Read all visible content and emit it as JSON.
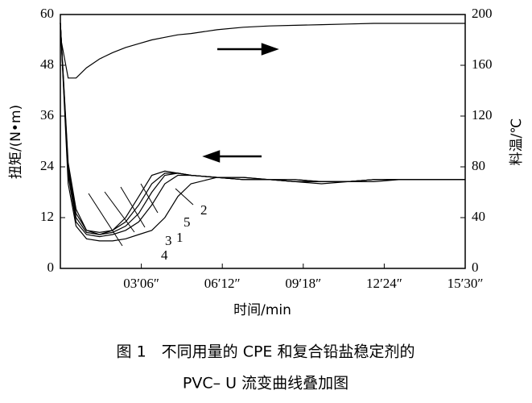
{
  "chart_data": {
    "type": "line",
    "x_label": "时间/min",
    "y_label": "扭矩/(N•m)",
    "y2_label": "料温/℃",
    "caption": [
      "图 1　不同用量的 CPE 和复合铅盐稳定剂的",
      "PVC– U 流变曲线叠加图"
    ],
    "x": [
      0,
      0.3,
      0.6,
      1,
      1.5,
      2,
      2.5,
      3,
      3.5,
      4,
      4.5,
      5,
      6,
      7,
      8,
      9,
      10,
      11,
      12,
      13,
      14,
      15,
      15.5
    ],
    "series": [
      {
        "name": "1",
        "color": "#000000",
        "values": [
          58,
          23,
          12,
          8.5,
          8,
          8.5,
          10,
          13,
          18,
          22,
          22.5,
          22,
          21.5,
          21,
          21,
          20.5,
          20.5,
          20.5,
          21,
          21,
          21,
          21,
          21
        ]
      },
      {
        "name": "2",
        "color": "#000000",
        "values": [
          58,
          20,
          10,
          7,
          6.5,
          6.5,
          7,
          8,
          9,
          12,
          17,
          20,
          21.5,
          21.5,
          21,
          21,
          20.5,
          20.5,
          21,
          21,
          21,
          21,
          21
        ]
      },
      {
        "name": "3",
        "color": "#000000",
        "values": [
          58,
          24,
          13,
          9,
          8.5,
          9,
          11,
          15,
          20,
          22.5,
          22.5,
          22,
          21.5,
          21,
          21,
          20.5,
          20.5,
          20.5,
          21,
          21,
          21,
          21,
          21
        ]
      },
      {
        "name": "4",
        "color": "#000000",
        "values": [
          58,
          25,
          14,
          9,
          8,
          9,
          12,
          17,
          22,
          23,
          22.5,
          22,
          21.5,
          21.5,
          21,
          21,
          20.5,
          20.5,
          21,
          21,
          21,
          21,
          21
        ]
      },
      {
        "name": "5",
        "color": "#000000",
        "values": [
          58,
          22,
          11,
          8,
          7.5,
          8,
          9,
          11,
          15,
          20,
          22,
          22,
          21.5,
          21,
          21,
          20.5,
          20,
          20.5,
          20.5,
          21,
          21,
          21,
          21
        ]
      },
      {
        "color": "#000000",
        "axis": "y2",
        "values": [
          183,
          150,
          150,
          158,
          165,
          170,
          174,
          177,
          180,
          182,
          184,
          185,
          188,
          190,
          191,
          191.5,
          192,
          192.5,
          193,
          193,
          193,
          193,
          193
        ]
      }
    ],
    "xlim": [
      0,
      15.5
    ],
    "xticks": [
      {
        "value": 3.1,
        "label": "03′06″"
      },
      {
        "value": 6.2,
        "label": "06′12″"
      },
      {
        "value": 9.3,
        "label": "09′18″"
      },
      {
        "value": 12.4,
        "label": "12′24″"
      },
      {
        "value": 15.5,
        "label": "15′30″"
      }
    ],
    "ylim": [
      0,
      60
    ],
    "yticks": [
      0,
      12,
      24,
      36,
      48,
      60
    ],
    "y2lim": [
      0,
      200
    ],
    "y2ticks": [
      0,
      40,
      80,
      120,
      160,
      200
    ],
    "grid": false
  }
}
